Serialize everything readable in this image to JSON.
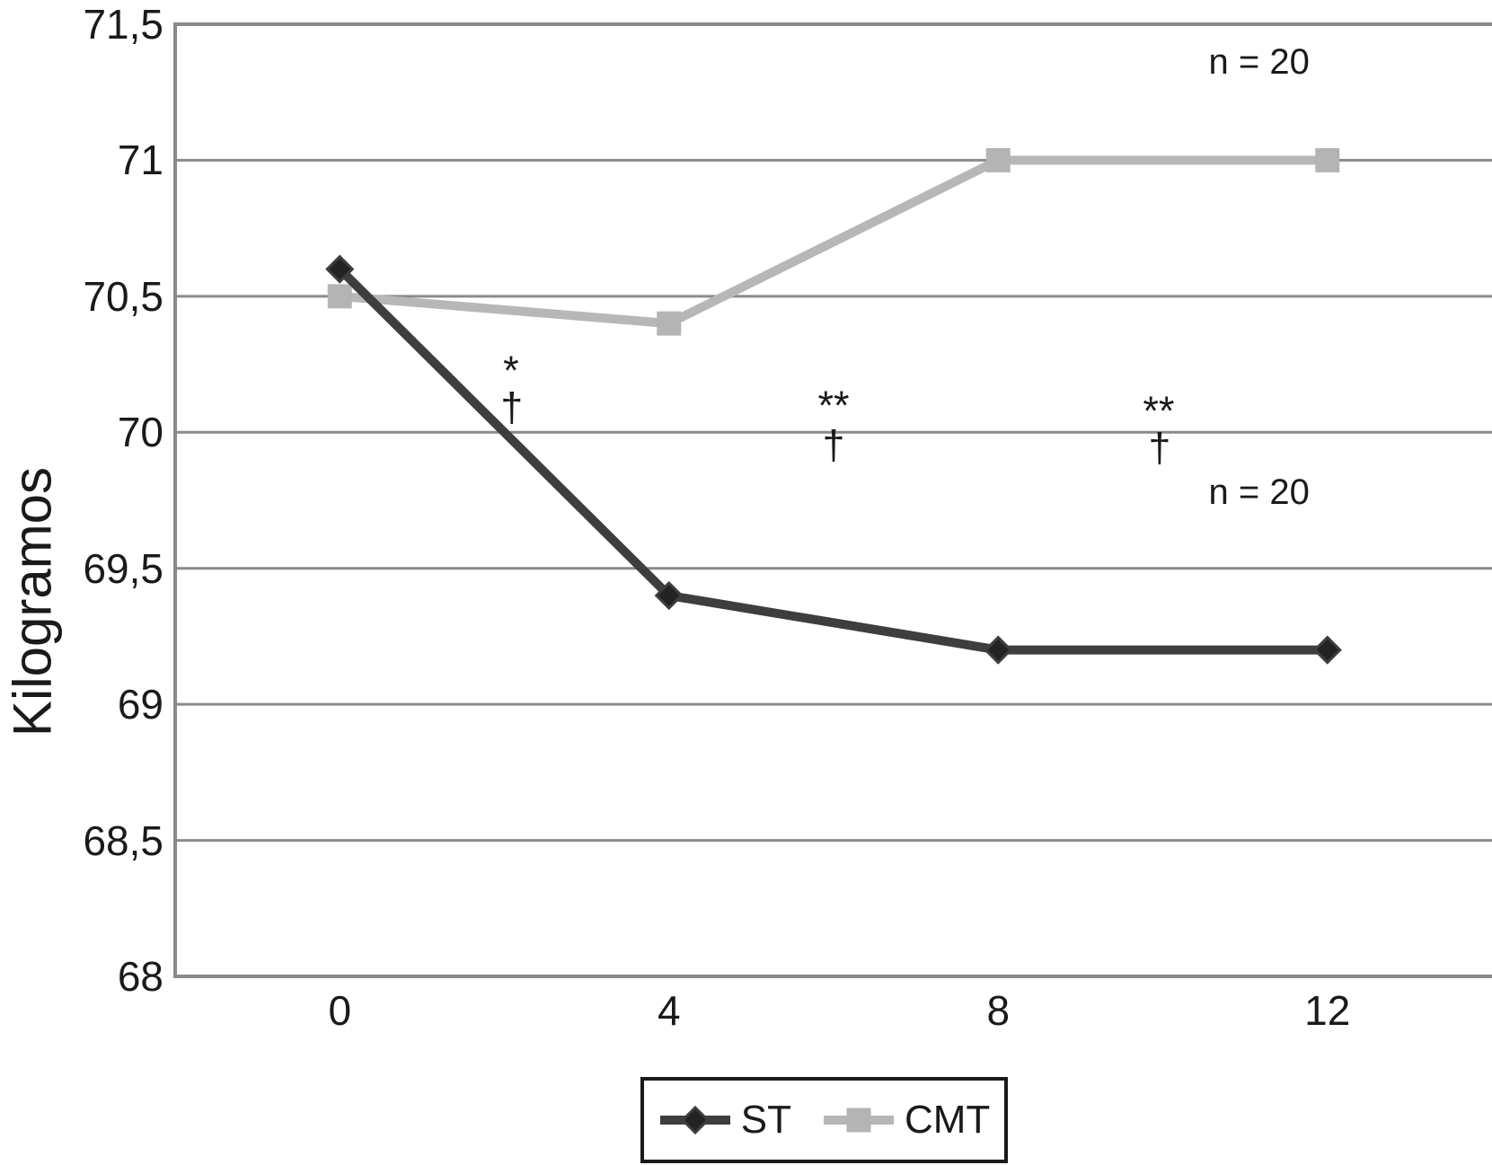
{
  "chart_data": {
    "type": "line",
    "title": "",
    "xlabel": "",
    "ylabel": "Kilogramos",
    "categories": [
      "0",
      "4",
      "8",
      "12"
    ],
    "x_values": [
      0,
      4,
      8,
      12
    ],
    "series": [
      {
        "name": "ST",
        "marker": "diamond",
        "line_color": "#3e3e40",
        "marker_color": "#232325",
        "values": [
          70.6,
          69.4,
          69.2,
          69.2
        ]
      },
      {
        "name": "CMT",
        "marker": "square",
        "line_color": "#b7b7b7",
        "marker_color": "#b4b4b4",
        "values": [
          70.5,
          70.4,
          71.0,
          71.0
        ]
      }
    ],
    "ylim": [
      68,
      71.5
    ],
    "ytick_values": [
      71.5,
      71.0,
      70.5,
      70.0,
      69.5,
      69.0,
      68.5,
      68.0
    ],
    "ytick_labels": [
      "71,5",
      "71",
      "70,5",
      "70",
      "69,5",
      "69",
      "68,5",
      "68"
    ],
    "grid": "horizontal",
    "grid_color": "#8a8a8a",
    "legend_position": "bottom",
    "annotations": [
      {
        "text": "*",
        "x": 2.08,
        "y": 70.26,
        "kind": "asterisk"
      },
      {
        "text": "†",
        "x": 2.09,
        "y": 70.09,
        "kind": "dagger"
      },
      {
        "text": "**",
        "x": 6.0,
        "y": 70.13,
        "kind": "asterisk"
      },
      {
        "text": "†",
        "x": 6.0,
        "y": 69.95,
        "kind": "dagger"
      },
      {
        "text": "**",
        "x": 9.95,
        "y": 70.11,
        "kind": "asterisk"
      },
      {
        "text": "†",
        "x": 9.96,
        "y": 69.94,
        "kind": "dagger"
      },
      {
        "text": "n = 20",
        "x": 11.17,
        "y": 71.36,
        "kind": "note"
      },
      {
        "text": "n = 20",
        "x": 11.17,
        "y": 69.78,
        "kind": "note"
      }
    ]
  }
}
